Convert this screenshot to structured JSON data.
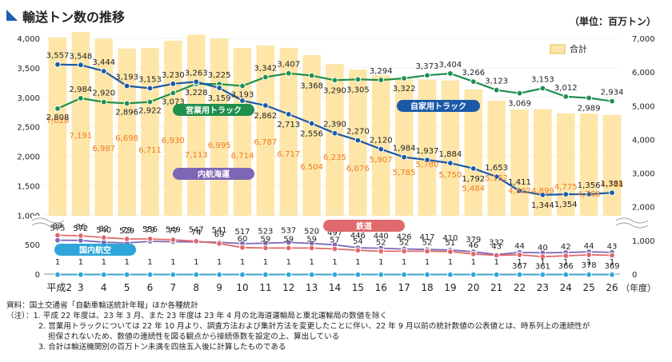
{
  "header": {
    "title": "輸送トン数の推移",
    "unit": "（単位：百万トン）"
  },
  "colors": {
    "total_bar": "#fde6a8",
    "commercial_truck": "#1f8f4e",
    "private_truck": "#1b5aa8",
    "coastal": "#7d66b5",
    "rail": "#e0696b",
    "air": "#2fa6d9",
    "total_label": "#f07a20",
    "title_mark": "#1a5fb0"
  },
  "chart_data": {
    "type": "bar+line",
    "x_prefix": "平成",
    "x_suffix": "（年度）",
    "x": [
      "2",
      "3",
      "4",
      "5",
      "6",
      "7",
      "8",
      "9",
      "10",
      "11",
      "12",
      "13",
      "14",
      "15",
      "16",
      "17",
      "18",
      "19",
      "20",
      "21",
      "22",
      "23",
      "24",
      "25",
      "26"
    ],
    "left_axis_ticks": [
      "0",
      "500",
      "1,000",
      "1,500",
      "2,000",
      "2,500",
      "3,000",
      "3,500",
      "4,000"
    ],
    "right_axis_ticks": [
      "0",
      "1,000",
      "2,000",
      "3,000",
      "4,000",
      "5,000",
      "6,000",
      "7,000"
    ],
    "legend_total": "合計",
    "total": {
      "name": "合計",
      "values": [
        7028,
        7191,
        6987,
        6698,
        6711,
        6930,
        7113,
        6995,
        6714,
        6787,
        6717,
        6504,
        6235,
        6076,
        5907,
        5785,
        5780,
        5750,
        5484,
        5152,
        4892,
        4899,
        4775,
        4768,
        4728
      ]
    },
    "commercial_truck": {
      "name": "営業用トラック",
      "values": [
        2808,
        2984,
        2920,
        2896,
        2922,
        3073,
        3228,
        3225,
        3193,
        3342,
        3407,
        3368,
        3290,
        3305,
        3294,
        3322,
        3373,
        3404,
        3266,
        3123,
        3069,
        3153,
        3012,
        2989,
        2934
      ]
    },
    "private_truck": {
      "name": "自家用トラック",
      "values": [
        3557,
        3548,
        3444,
        3193,
        3153,
        3230,
        3263,
        3159,
        2943,
        2862,
        2713,
        2556,
        2390,
        2270,
        2120,
        1984,
        1937,
        1884,
        1792,
        1653,
        1411,
        1344,
        1354,
        1356,
        1381
      ]
    },
    "coastal_shipping": {
      "name": "内航海運",
      "values": [
        575,
        572,
        540,
        529,
        556,
        549,
        547,
        541,
        517,
        523,
        537,
        520,
        497,
        446,
        440,
        426,
        417,
        410,
        379,
        332,
        367,
        361,
        366,
        378,
        369
      ]
    },
    "rail": {
      "name": "鉄道",
      "values": [
        87,
        86,
        82,
        79,
        79,
        77,
        74,
        69,
        60,
        59,
        59,
        59,
        57,
        54,
        52,
        52,
        52,
        51,
        46,
        43,
        44,
        40,
        42,
        44,
        43
      ]
    },
    "domestic_air": {
      "name": "国内航空",
      "values": [
        1,
        1,
        1,
        1,
        1,
        1,
        1,
        1,
        1,
        1,
        1,
        1,
        1,
        1,
        1,
        1,
        1,
        1,
        1,
        1,
        1,
        1,
        1,
        1,
        1
      ]
    }
  },
  "notes": [
    "資料：国土交通省「自動車輸送統計年報」ほか各種統計",
    "（注）：1. 平成 22 年度は、23 年 3 月、また 23 年度は 23 年 4 月の北海道運輸局と東北運輸局の数値を除く",
    "2. 営業用トラックについては 22 年 10 月より、調査方法および集計方法を変更したことに伴い、22 年 9 月以前の統計数値の公表値とは、時系列上の連続性が",
    "担保されないため、数値の連続性を図る観点から接続係数を設定の上、算出している",
    "3. 合計は輸送機関別の百万トン未満を四捨五入後に計算したものである"
  ]
}
